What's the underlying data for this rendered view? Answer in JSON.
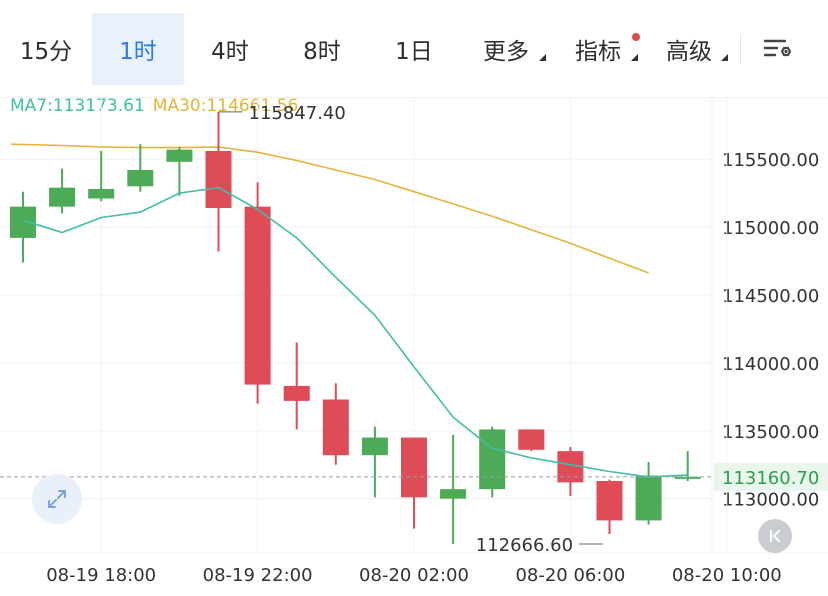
{
  "tabs": [
    {
      "label": "15分",
      "active": false,
      "dropdown": false,
      "dot": false
    },
    {
      "label": "1时",
      "active": true,
      "dropdown": false,
      "dot": false
    },
    {
      "label": "4时",
      "active": false,
      "dropdown": false,
      "dot": false
    },
    {
      "label": "8时",
      "active": false,
      "dropdown": false,
      "dot": false
    },
    {
      "label": "1日",
      "active": false,
      "dropdown": false,
      "dot": false
    },
    {
      "label": "更多",
      "active": false,
      "dropdown": true,
      "dot": false
    },
    {
      "label": "指标",
      "active": false,
      "dropdown": true,
      "dot": true
    },
    {
      "label": "高级",
      "active": false,
      "dropdown": true,
      "dot": false
    }
  ],
  "legend": {
    "ma7": "MA7:113173.61",
    "ma30": "MA30:114661.56"
  },
  "colors": {
    "up": "#4daa57",
    "down": "#de4c57",
    "ma7": "#3fbfa5",
    "ma30": "#e2b53a",
    "accent": "#2f7be5",
    "last_price_bg": "#e8f6ec",
    "last_price_text": "#2e9d4d"
  },
  "icons": {
    "settings": "chart-settings-icon",
    "scroll_left": "collapse-arrows-icon",
    "scroll_right": "scroll-to-latest-icon"
  },
  "chart_data": {
    "type": "candlestick",
    "ylim": [
      112600,
      115950
    ],
    "y_ticks": [
      "113000.00",
      "113500.00",
      "114000.00",
      "114500.00",
      "115000.00",
      "115500.00"
    ],
    "x_ticks": [
      {
        "label": "08-19 18:00",
        "index": 2
      },
      {
        "label": "08-19 22:00",
        "index": 6
      },
      {
        "label": "08-20 02:00",
        "index": 10
      },
      {
        "label": "08-20 06:00",
        "index": 14
      },
      {
        "label": "08-20 10:00",
        "index": 18
      }
    ],
    "candles": [
      {
        "time": "08-19 16:00",
        "open": 114920,
        "high": 115260,
        "low": 114740,
        "close": 115150
      },
      {
        "time": "08-19 17:00",
        "open": 115150,
        "high": 115430,
        "low": 115100,
        "close": 115290
      },
      {
        "time": "08-19 18:00",
        "open": 115210,
        "high": 115560,
        "low": 115190,
        "close": 115280
      },
      {
        "time": "08-19 19:00",
        "open": 115300,
        "high": 115610,
        "low": 115260,
        "close": 115420
      },
      {
        "time": "08-19 20:00",
        "open": 115480,
        "high": 115590,
        "low": 115230,
        "close": 115570
      },
      {
        "time": "08-19 21:00",
        "open": 115560,
        "high": 115847.4,
        "low": 114820,
        "close": 115140
      },
      {
        "time": "08-19 22:00",
        "open": 115150,
        "high": 115330,
        "low": 113700,
        "close": 113840
      },
      {
        "time": "08-19 23:00",
        "open": 113830,
        "high": 114150,
        "low": 113510,
        "close": 113720
      },
      {
        "time": "08-20 00:00",
        "open": 113730,
        "high": 113850,
        "low": 113250,
        "close": 113320
      },
      {
        "time": "08-20 01:00",
        "open": 113320,
        "high": 113530,
        "low": 113010,
        "close": 113450
      },
      {
        "time": "08-20 02:00",
        "open": 113450,
        "high": 113450,
        "low": 112780,
        "close": 113010
      },
      {
        "time": "08-20 03:00",
        "open": 113000,
        "high": 113470,
        "low": 112666.6,
        "close": 113070
      },
      {
        "time": "08-20 04:00",
        "open": 113070,
        "high": 113530,
        "low": 113010,
        "close": 113510
      },
      {
        "time": "08-20 05:00",
        "open": 113510,
        "high": 113510,
        "low": 113350,
        "close": 113360
      },
      {
        "time": "08-20 06:00",
        "open": 113350,
        "high": 113380,
        "low": 113020,
        "close": 113120
      },
      {
        "time": "08-20 07:00",
        "open": 113130,
        "high": 113140,
        "low": 112740,
        "close": 112840
      },
      {
        "time": "08-20 08:00",
        "open": 112840,
        "high": 113270,
        "low": 112810,
        "close": 113170
      },
      {
        "time": "08-20 09:00",
        "open": 113150,
        "high": 113350,
        "low": 113130,
        "close": 113160.7
      }
    ],
    "ma7": [
      {
        "index": 0,
        "value": 115050
      },
      {
        "index": 1,
        "value": 114960
      },
      {
        "index": 2,
        "value": 115070
      },
      {
        "index": 3,
        "value": 115110
      },
      {
        "index": 4,
        "value": 115250
      },
      {
        "index": 5,
        "value": 115290
      },
      {
        "index": 6,
        "value": 115130
      },
      {
        "index": 7,
        "value": 114920
      },
      {
        "index": 8,
        "value": 114630
      },
      {
        "index": 9,
        "value": 114350
      },
      {
        "index": 10,
        "value": 113970
      },
      {
        "index": 11,
        "value": 113600
      },
      {
        "index": 12,
        "value": 113370
      },
      {
        "index": 13,
        "value": 113300
      },
      {
        "index": 14,
        "value": 113250
      },
      {
        "index": 15,
        "value": 113200
      },
      {
        "index": 16,
        "value": 113160
      },
      {
        "index": 17,
        "value": 113173.61
      }
    ],
    "ma30": [
      {
        "index": -0.3,
        "value": 115610
      },
      {
        "index": 1,
        "value": 115600
      },
      {
        "index": 2,
        "value": 115590
      },
      {
        "index": 3,
        "value": 115585
      },
      {
        "index": 4,
        "value": 115585
      },
      {
        "index": 5,
        "value": 115590
      },
      {
        "index": 6,
        "value": 115550
      },
      {
        "index": 7,
        "value": 115490
      },
      {
        "index": 8,
        "value": 115420
      },
      {
        "index": 9,
        "value": 115350
      },
      {
        "index": 10,
        "value": 115260
      },
      {
        "index": 11,
        "value": 115170
      },
      {
        "index": 12,
        "value": 115080
      },
      {
        "index": 13,
        "value": 114980
      },
      {
        "index": 14,
        "value": 114880
      },
      {
        "index": 15,
        "value": 114770
      },
      {
        "index": 16,
        "value": 114661.56
      }
    ],
    "high_label": {
      "text": "115847.40",
      "index": 5,
      "value": 115847.4
    },
    "low_label": {
      "text": "112666.60",
      "index": 11,
      "value": 112666.6
    },
    "last_price": {
      "text": "113160.70",
      "value": 113160.7
    }
  }
}
